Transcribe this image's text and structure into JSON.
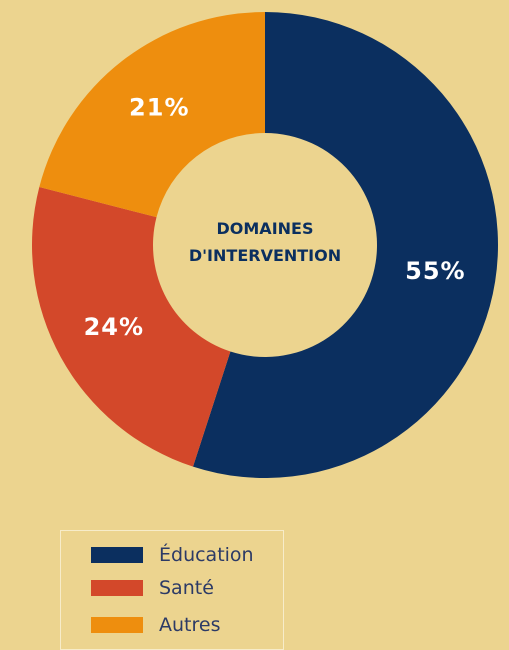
{
  "chart_data": {
    "type": "donut",
    "title": "DOMAINES D'INTERVENTION",
    "categories": [
      "Éducation",
      "Santé",
      "Autres"
    ],
    "values": [
      55,
      24,
      21
    ],
    "value_labels": [
      "55%",
      "24%",
      "21%"
    ],
    "colors": [
      "#0b2f5f",
      "#d3482a",
      "#ee8e0e"
    ],
    "legend": "bottom"
  }
}
